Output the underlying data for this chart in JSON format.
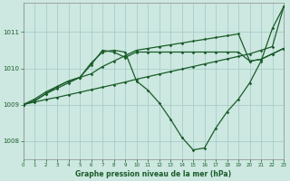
{
  "background_color": "#cce8e0",
  "grid_color": "#aacccc",
  "line_color": "#1a5c2a",
  "xlabel": "Graphe pression niveau de la mer (hPa)",
  "xlim": [
    0,
    23
  ],
  "ylim": [
    1007.5,
    1011.8
  ],
  "yticks": [
    1008,
    1009,
    1010,
    1011
  ],
  "xticks": [
    0,
    1,
    2,
    3,
    4,
    5,
    6,
    7,
    8,
    9,
    10,
    11,
    12,
    13,
    14,
    15,
    16,
    17,
    18,
    19,
    20,
    21,
    22,
    23
  ],
  "line1_x": [
    0,
    1,
    2,
    3,
    4,
    5,
    6,
    7,
    8,
    9,
    10,
    11,
    12,
    13,
    14,
    15,
    16,
    17,
    18,
    19,
    20,
    21,
    22,
    23
  ],
  "line1_y": [
    1009.0,
    1009.07,
    1009.14,
    1009.2,
    1009.27,
    1009.34,
    1009.41,
    1009.48,
    1009.55,
    1009.62,
    1009.7,
    1009.77,
    1009.84,
    1009.91,
    1009.98,
    1010.05,
    1010.12,
    1010.19,
    1010.26,
    1010.33,
    1010.4,
    1010.5,
    1010.6,
    1011.7
  ],
  "line2_x": [
    0,
    1,
    2,
    3,
    4,
    5,
    6,
    7,
    8,
    9,
    10,
    11,
    12,
    13,
    14,
    15,
    16,
    17,
    18,
    19,
    20,
    21,
    22,
    23
  ],
  "line2_y": [
    1009.0,
    1009.1,
    1009.3,
    1009.5,
    1009.65,
    1009.75,
    1010.15,
    1010.45,
    1010.5,
    1010.45,
    1009.65,
    1009.4,
    1009.05,
    1008.6,
    1008.1,
    1007.75,
    1007.8,
    1008.35,
    1008.8,
    1009.15,
    1009.6,
    1010.2,
    1011.1,
    1011.7
  ],
  "line3_x": [
    0,
    1,
    2,
    3,
    4,
    5,
    6,
    7,
    8,
    9,
    10,
    11,
    12,
    13,
    14,
    15,
    16,
    17,
    18,
    19,
    20,
    21,
    22,
    23
  ],
  "line3_y": [
    1009.0,
    1009.15,
    1009.35,
    1009.5,
    1009.65,
    1009.75,
    1010.1,
    1010.5,
    1010.45,
    1010.3,
    1010.45,
    1010.45,
    1010.45,
    1010.45,
    1010.45,
    1010.45,
    1010.45,
    1010.45,
    1010.45,
    1010.45,
    1010.2,
    1010.25,
    1010.4,
    1010.55
  ],
  "line4_x": [
    0,
    1,
    2,
    3,
    4,
    5,
    6,
    7,
    8,
    9,
    10,
    11,
    12,
    13,
    14,
    15,
    16,
    17,
    18,
    19,
    20,
    21,
    22,
    23
  ],
  "line4_y": [
    1009.0,
    1009.1,
    1009.3,
    1009.45,
    1009.6,
    1009.75,
    1009.85,
    1010.05,
    1010.2,
    1010.35,
    1010.5,
    1010.55,
    1010.6,
    1010.65,
    1010.7,
    1010.75,
    1010.8,
    1010.85,
    1010.9,
    1010.95,
    1010.2,
    1010.25,
    1010.4,
    1010.55
  ]
}
